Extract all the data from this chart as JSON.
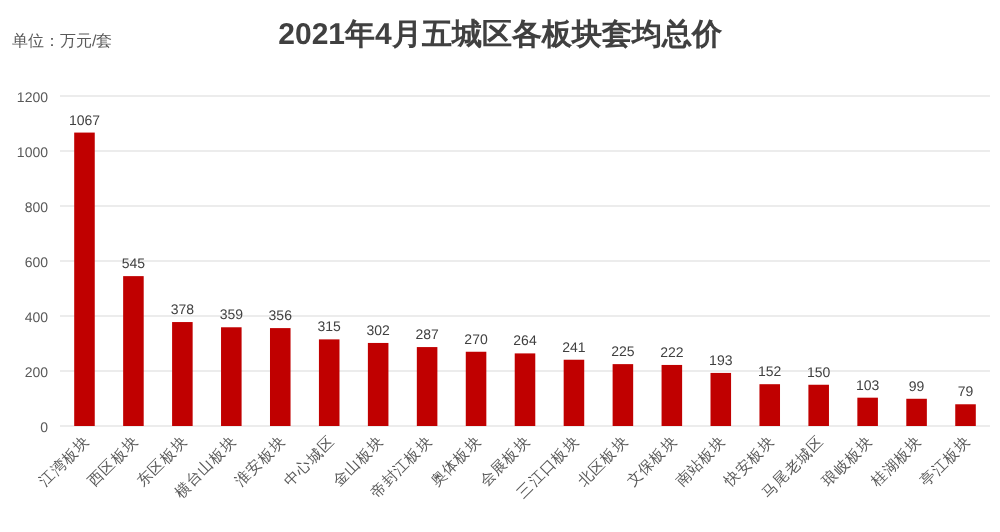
{
  "chart_data": {
    "type": "bar",
    "title": "2021年4月五城区各板块套均总价",
    "annotations": [
      "单位：万元/套"
    ],
    "categories": [
      "江湾板块",
      "西区板块",
      "东区板块",
      "横台山板块",
      "淮安板块",
      "中心城区",
      "金山板块",
      "帝封江板块",
      "奥体板块",
      "会展板块",
      "三江口板块",
      "北区板块",
      "文保板块",
      "南站板块",
      "快安板块",
      "马尾老城区",
      "琅岐板块",
      "桂湖板块",
      "亭江板块"
    ],
    "values": [
      1067,
      545,
      378,
      359,
      356,
      315,
      302,
      287,
      270,
      264,
      241,
      225,
      222,
      193,
      152,
      150,
      103,
      99,
      79
    ],
    "color": "#c00000",
    "ylim": [
      0,
      1200
    ],
    "yticks": [
      0,
      200,
      400,
      600,
      800,
      1000,
      1200
    ],
    "grid": "y",
    "data_labels": true
  }
}
